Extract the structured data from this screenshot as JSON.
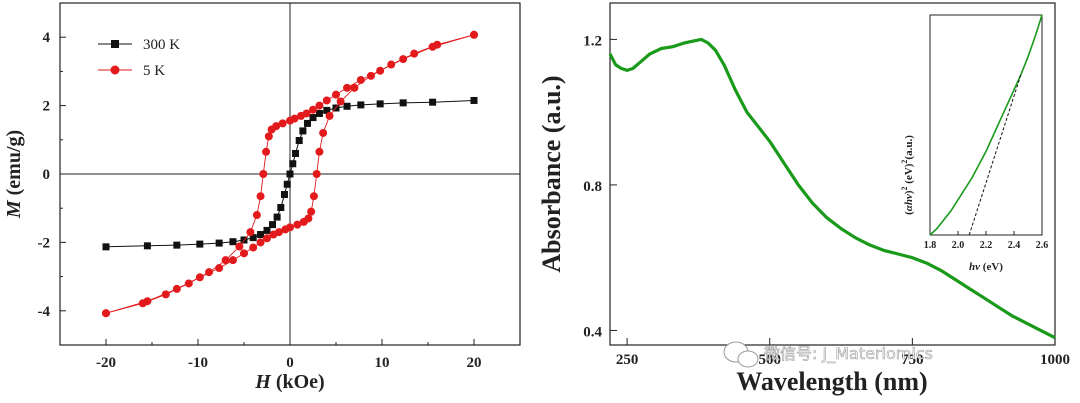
{
  "chart_data": [
    {
      "type": "line",
      "title": "",
      "xlabel": "H (kOe)",
      "ylabel": "M (emu/g)",
      "xlabel_italic": "H",
      "xlabel_rest": " (kOe)",
      "ylabel_italic": "M",
      "ylabel_rest": " (emu/g)",
      "xlim": [
        -25,
        25
      ],
      "ylim": [
        -5,
        5
      ],
      "xticks": [
        -20,
        -10,
        0,
        10,
        20
      ],
      "yticks": [
        -4,
        -2,
        0,
        2,
        4
      ],
      "xtick_labels": [
        "-20",
        "-10",
        "0",
        "10",
        "20"
      ],
      "ytick_labels": [
        "-4",
        "-2",
        "0",
        "2",
        "4"
      ],
      "legend_position": "top-left",
      "series": [
        {
          "name": "300 K",
          "color": "#111111",
          "marker": "square",
          "branches": [
            [
              [
                -20,
                -2.13
              ],
              [
                -15.5,
                -2.1
              ],
              [
                -12.3,
                -2.08
              ],
              [
                -9.8,
                -2.05
              ],
              [
                -7.7,
                -2.02
              ],
              [
                -6.2,
                -1.98
              ],
              [
                -5,
                -1.93
              ],
              [
                -4,
                -1.86
              ],
              [
                -3.2,
                -1.77
              ],
              [
                -2.5,
                -1.65
              ],
              [
                -1.9,
                -1.48
              ],
              [
                -1.4,
                -1.26
              ],
              [
                -1,
                -0.98
              ],
              [
                -0.6,
                -0.6
              ],
              [
                -0.3,
                -0.3
              ],
              [
                0,
                0
              ],
              [
                0.3,
                0.3
              ],
              [
                0.6,
                0.6
              ],
              [
                1,
                0.98
              ],
              [
                1.4,
                1.26
              ],
              [
                1.9,
                1.48
              ],
              [
                2.5,
                1.65
              ],
              [
                3.2,
                1.77
              ],
              [
                4,
                1.86
              ],
              [
                5,
                1.93
              ],
              [
                6.2,
                1.98
              ],
              [
                7.7,
                2.02
              ],
              [
                9.8,
                2.05
              ],
              [
                12.3,
                2.08
              ],
              [
                15.5,
                2.1
              ],
              [
                20,
                2.15
              ]
            ]
          ]
        },
        {
          "name": "5 K",
          "color": "#e31a1c",
          "marker": "circle",
          "branches": [
            [
              [
                20,
                4.07
              ],
              [
                15.5,
                3.72
              ],
              [
                12.3,
                3.36
              ],
              [
                9.8,
                3.02
              ],
              [
                7.7,
                2.75
              ],
              [
                6.2,
                2.52
              ],
              [
                5,
                2.32
              ],
              [
                4,
                2.15
              ],
              [
                3.2,
                2.0
              ],
              [
                2.5,
                1.88
              ],
              [
                1.8,
                1.77
              ],
              [
                1.2,
                1.7
              ],
              [
                0.5,
                1.62
              ],
              [
                0,
                1.56
              ],
              [
                -0.8,
                1.48
              ],
              [
                -1.5,
                1.4
              ],
              [
                -2,
                1.3
              ],
              [
                -2.3,
                1.1
              ],
              [
                -2.6,
                0.65
              ],
              [
                -2.9,
                0
              ],
              [
                -3.2,
                -0.65
              ],
              [
                -3.6,
                -1.2
              ],
              [
                -4.3,
                -1.7
              ],
              [
                -5.5,
                -2.12
              ],
              [
                -7,
                -2.52
              ],
              [
                -8.8,
                -2.87
              ],
              [
                -11,
                -3.2
              ],
              [
                -13.5,
                -3.52
              ],
              [
                -16,
                -3.78
              ],
              [
                -20,
                -4.07
              ]
            ],
            [
              [
                -20,
                -4.07
              ],
              [
                -15.5,
                -3.72
              ],
              [
                -12.3,
                -3.36
              ],
              [
                -9.8,
                -3.02
              ],
              [
                -7.7,
                -2.75
              ],
              [
                -6.2,
                -2.52
              ],
              [
                -5,
                -2.32
              ],
              [
                -4,
                -2.15
              ],
              [
                -3.2,
                -2.0
              ],
              [
                -2.5,
                -1.88
              ],
              [
                -1.8,
                -1.77
              ],
              [
                -1.2,
                -1.7
              ],
              [
                -0.5,
                -1.62
              ],
              [
                0,
                -1.56
              ],
              [
                0.8,
                -1.48
              ],
              [
                1.5,
                -1.4
              ],
              [
                2,
                -1.3
              ],
              [
                2.3,
                -1.1
              ],
              [
                2.6,
                -0.65
              ],
              [
                2.9,
                0
              ],
              [
                3.2,
                0.65
              ],
              [
                3.6,
                1.2
              ],
              [
                4.3,
                1.7
              ],
              [
                5.5,
                2.12
              ],
              [
                7,
                2.52
              ],
              [
                8.8,
                2.87
              ],
              [
                11,
                3.2
              ],
              [
                13.5,
                3.52
              ],
              [
                16,
                3.78
              ],
              [
                20,
                4.07
              ]
            ]
          ]
        }
      ]
    },
    {
      "type": "line",
      "title": "",
      "xlabel": "Wavelength (nm)",
      "ylabel": "Absorbance (a.u.)",
      "xlim": [
        220,
        1000
      ],
      "ylim": [
        0.36,
        1.3
      ],
      "xticks": [
        250,
        500,
        750,
        1000
      ],
      "yticks": [
        0.4,
        0.8,
        1.2
      ],
      "xtick_labels": [
        "250",
        "500",
        "750",
        "1000"
      ],
      "ytick_labels": [
        "0.4",
        "0.8",
        "1.2"
      ],
      "series": [
        {
          "name": "absorbance",
          "color": "#1a9a1a",
          "x": [
            220,
            230,
            240,
            250,
            260,
            275,
            290,
            310,
            330,
            350,
            365,
            380,
            392,
            405,
            420,
            440,
            460,
            480,
            500,
            525,
            550,
            575,
            600,
            625,
            650,
            675,
            700,
            725,
            750,
            775,
            800,
            825,
            850,
            875,
            900,
            925,
            950,
            975,
            1000
          ],
          "y": [
            1.16,
            1.13,
            1.12,
            1.115,
            1.12,
            1.14,
            1.16,
            1.175,
            1.18,
            1.19,
            1.195,
            1.2,
            1.19,
            1.17,
            1.13,
            1.06,
            1.0,
            0.96,
            0.92,
            0.86,
            0.8,
            0.75,
            0.71,
            0.68,
            0.655,
            0.635,
            0.62,
            0.61,
            0.6,
            0.585,
            0.565,
            0.54,
            0.515,
            0.49,
            0.465,
            0.44,
            0.42,
            0.4,
            0.38
          ]
        }
      ],
      "inset": {
        "type": "line",
        "xlabel": "hν (eV)",
        "xlabel_italic": "hν",
        "xlabel_rest": " (eV)",
        "ylabel": "(αhν)² (eV)²(a.u.)",
        "ylabel_italic_part": "αhν",
        "ylabel_rest": " (eV)",
        "ylabel_tail": "(a.u.)",
        "superscript": "2",
        "xlim": [
          1.8,
          2.6
        ],
        "ylim": [
          0,
          1
        ],
        "xticks": [
          1.8,
          2.0,
          2.2,
          2.4,
          2.6
        ],
        "xtick_labels": [
          "1.8",
          "2.0",
          "2.2",
          "2.4",
          "2.6"
        ],
        "curve": {
          "color": "#1a9a1a",
          "x": [
            1.8,
            1.85,
            1.9,
            1.95,
            2.0,
            2.05,
            2.1,
            2.15,
            2.2,
            2.25,
            2.3,
            2.35,
            2.4,
            2.45,
            2.5,
            2.55,
            2.6
          ],
          "y": [
            0.0,
            0.03,
            0.07,
            0.11,
            0.16,
            0.21,
            0.26,
            0.32,
            0.38,
            0.45,
            0.52,
            0.59,
            0.66,
            0.73,
            0.81,
            0.9,
            1.0
          ]
        },
        "tangent": {
          "color": "#111111",
          "x": [
            2.08,
            2.45
          ],
          "y": [
            0.0,
            0.73
          ]
        }
      }
    }
  ],
  "watermark": {
    "text": "微信号: J_Materiomics"
  }
}
